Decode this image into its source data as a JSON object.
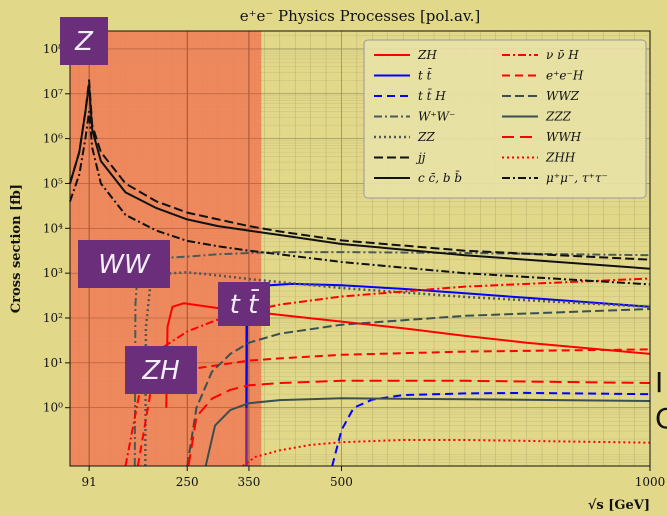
{
  "chart_data": {
    "type": "line",
    "title": "e⁺e⁻ Physics Processes [pol.av.]",
    "xlabel": "√s [GeV]",
    "ylabel": "Cross section [fb]",
    "xlim": [
      60,
      1000
    ],
    "ylim_exp": [
      -1.3,
      8.4
    ],
    "x_ticks": [
      91,
      250,
      350,
      500,
      1000
    ],
    "x_tick_labels": [
      "91",
      "250",
      "350",
      "500",
      "1000"
    ],
    "y_ticks_exp": [
      0,
      1,
      2,
      3,
      4,
      5,
      6,
      7,
      8
    ],
    "y_tick_labels": [
      "10⁰",
      "10¹",
      "10²",
      "10³",
      "10⁴",
      "10⁵",
      "10⁶",
      "10⁷",
      "10⁸"
    ],
    "grid": true,
    "shaded_region_x": [
      60,
      370
    ],
    "legend_position": "top-right",
    "series": [
      {
        "name": "ZH",
        "color": "#ff0000",
        "dash": "",
        "width": 2,
        "points": [
          [
            216,
            0
          ],
          [
            218,
            1.8
          ],
          [
            226,
            2.25
          ],
          [
            245,
            2.33
          ],
          [
            260,
            2.3
          ],
          [
            300,
            2.22
          ],
          [
            350,
            2.15
          ],
          [
            400,
            2.07
          ],
          [
            500,
            1.92
          ],
          [
            600,
            1.77
          ],
          [
            700,
            1.6
          ],
          [
            800,
            1.45
          ],
          [
            1000,
            1.2
          ]
        ]
      },
      {
        "name": "t̄t",
        "label_tex": "t t̄",
        "color": "#0000ff",
        "dash": "",
        "width": 2,
        "points": [
          [
            346,
            0
          ],
          [
            347,
            2.3
          ],
          [
            352,
            2.6
          ],
          [
            370,
            2.72
          ],
          [
            420,
            2.76
          ],
          [
            500,
            2.73
          ],
          [
            600,
            2.65
          ],
          [
            700,
            2.55
          ],
          [
            800,
            2.45
          ],
          [
            1000,
            2.25
          ]
        ]
      },
      {
        "name": "t̄tH",
        "label_tex": "t t̄ H",
        "color": "#0000ff",
        "dash": "8,5",
        "width": 2,
        "points": [
          [
            485,
            -1.3
          ],
          [
            500,
            -0.5
          ],
          [
            520,
            0
          ],
          [
            550,
            0.18
          ],
          [
            600,
            0.28
          ],
          [
            700,
            0.32
          ],
          [
            800,
            0.33
          ],
          [
            1000,
            0.3
          ]
        ]
      },
      {
        "name": "W⁺W⁻",
        "color": "#4a5a5a",
        "dash": "8,3,2,3",
        "width": 2,
        "points": [
          [
            165,
            -1.3
          ],
          [
            166,
            2.3
          ],
          [
            170,
            3.1
          ],
          [
            180,
            3.27
          ],
          [
            200,
            3.33
          ],
          [
            250,
            3.37
          ],
          [
            300,
            3.42
          ],
          [
            350,
            3.45
          ],
          [
            400,
            3.47
          ],
          [
            500,
            3.47
          ],
          [
            700,
            3.45
          ],
          [
            1000,
            3.4
          ]
        ]
      },
      {
        "name": "ZZ",
        "color": "#555555",
        "dash": "2,3",
        "width": 2.5,
        "points": [
          [
            182,
            -1.3
          ],
          [
            183,
            1.8
          ],
          [
            190,
            2.7
          ],
          [
            205,
            2.98
          ],
          [
            250,
            3.02
          ],
          [
            300,
            2.95
          ],
          [
            350,
            2.87
          ],
          [
            400,
            2.8
          ],
          [
            500,
            2.67
          ],
          [
            700,
            2.47
          ],
          [
            1000,
            2.25
          ]
        ]
      },
      {
        "name": "jj",
        "color": "#111111",
        "dash": "9,4",
        "width": 2,
        "points": [
          [
            60,
            5.0
          ],
          [
            75,
            5.7
          ],
          [
            85,
            6.6
          ],
          [
            91,
            7.3
          ],
          [
            96,
            6.3
          ],
          [
            110,
            5.7
          ],
          [
            150,
            5.0
          ],
          [
            200,
            4.6
          ],
          [
            250,
            4.35
          ],
          [
            300,
            4.2
          ],
          [
            350,
            4.05
          ],
          [
            400,
            3.93
          ],
          [
            500,
            3.73
          ],
          [
            700,
            3.5
          ],
          [
            1000,
            3.3
          ]
        ]
      },
      {
        "name": "c̄c, b̄b",
        "label_tex": "c c̄, b b̄",
        "color": "#111111",
        "dash": "",
        "width": 2,
        "points": [
          [
            60,
            5.0
          ],
          [
            75,
            5.7
          ],
          [
            85,
            6.6
          ],
          [
            91,
            7.2
          ],
          [
            96,
            6.2
          ],
          [
            110,
            5.5
          ],
          [
            150,
            4.8
          ],
          [
            200,
            4.45
          ],
          [
            250,
            4.2
          ],
          [
            300,
            4.05
          ],
          [
            350,
            3.95
          ],
          [
            400,
            3.85
          ],
          [
            500,
            3.65
          ],
          [
            700,
            3.4
          ],
          [
            1000,
            3.1
          ]
        ]
      },
      {
        "name": "νν̄H",
        "label_tex": "ν ν̄ H",
        "color": "#ff0000",
        "dash": "8,3,2,3",
        "width": 2,
        "points": [
          [
            150,
            -1.3
          ],
          [
            175,
            0.5
          ],
          [
            200,
            1.25
          ],
          [
            250,
            1.7
          ],
          [
            300,
            1.97
          ],
          [
            350,
            2.15
          ],
          [
            400,
            2.3
          ],
          [
            500,
            2.48
          ],
          [
            700,
            2.7
          ],
          [
            1000,
            2.88
          ]
        ]
      },
      {
        "name": "e⁺e⁻H",
        "color": "#ff0000",
        "dash": "8,5",
        "width": 2,
        "points": [
          [
            170,
            -1.3
          ],
          [
            190,
            0.3
          ],
          [
            220,
            0.72
          ],
          [
            250,
            0.85
          ],
          [
            300,
            0.95
          ],
          [
            350,
            1.05
          ],
          [
            400,
            1.1
          ],
          [
            500,
            1.18
          ],
          [
            700,
            1.25
          ],
          [
            1000,
            1.3
          ]
        ]
      },
      {
        "name": "WWZ",
        "color": "#3a5050",
        "dash": "9,4",
        "width": 2,
        "points": [
          [
            250,
            -1.3
          ],
          [
            265,
            0
          ],
          [
            290,
            0.8
          ],
          [
            320,
            1.2
          ],
          [
            350,
            1.45
          ],
          [
            400,
            1.65
          ],
          [
            500,
            1.85
          ],
          [
            700,
            2.05
          ],
          [
            1000,
            2.2
          ]
        ]
      },
      {
        "name": "ZZZ",
        "color": "#3a5050",
        "dash": "",
        "width": 2,
        "points": [
          [
            280,
            -1.3
          ],
          [
            295,
            -0.4
          ],
          [
            320,
            -0.05
          ],
          [
            350,
            0.1
          ],
          [
            400,
            0.17
          ],
          [
            500,
            0.21
          ],
          [
            700,
            0.19
          ],
          [
            1000,
            0.15
          ]
        ]
      },
      {
        "name": "WWH",
        "color": "#ff0000",
        "dash": "12,6",
        "width": 2,
        "points": [
          [
            252,
            -1.3
          ],
          [
            265,
            -0.2
          ],
          [
            290,
            0.2
          ],
          [
            320,
            0.4
          ],
          [
            350,
            0.5
          ],
          [
            400,
            0.55
          ],
          [
            500,
            0.6
          ],
          [
            700,
            0.6
          ],
          [
            1000,
            0.55
          ]
        ]
      },
      {
        "name": "ZHH",
        "color": "#ff0000",
        "dash": "2,3",
        "width": 2,
        "points": [
          [
            340,
            -1.3
          ],
          [
            360,
            -1.1
          ],
          [
            400,
            -0.95
          ],
          [
            450,
            -0.83
          ],
          [
            500,
            -0.77
          ],
          [
            600,
            -0.72
          ],
          [
            700,
            -0.72
          ],
          [
            1000,
            -0.78
          ]
        ]
      },
      {
        "name": "μ⁺μ⁻, τ⁺τ⁻",
        "color": "#111111",
        "dash": "8,3,2,3",
        "width": 2,
        "points": [
          [
            60,
            4.6
          ],
          [
            75,
            5.2
          ],
          [
            85,
            6.0
          ],
          [
            91,
            6.6
          ],
          [
            96,
            5.8
          ],
          [
            110,
            5.0
          ],
          [
            150,
            4.3
          ],
          [
            200,
            3.95
          ],
          [
            250,
            3.72
          ],
          [
            300,
            3.6
          ],
          [
            350,
            3.5
          ],
          [
            400,
            3.42
          ],
          [
            500,
            3.25
          ],
          [
            700,
            3.0
          ],
          [
            1000,
            2.75
          ]
        ]
      }
    ],
    "annotations": [
      {
        "text": "Z",
        "x": 91
      },
      {
        "text": "WW",
        "x": 165
      },
      {
        "text": "ZH",
        "x": 216
      },
      {
        "text": "t̄t",
        "label_tex": "t t̄",
        "x": 346
      }
    ],
    "right_edge_text": [
      "I",
      "C"
    ]
  },
  "colors": {
    "background": "#e2d88a",
    "shaded": "#ee7d55",
    "label_box": "#6b2e7a",
    "marker_line": "#7a2a8a"
  }
}
